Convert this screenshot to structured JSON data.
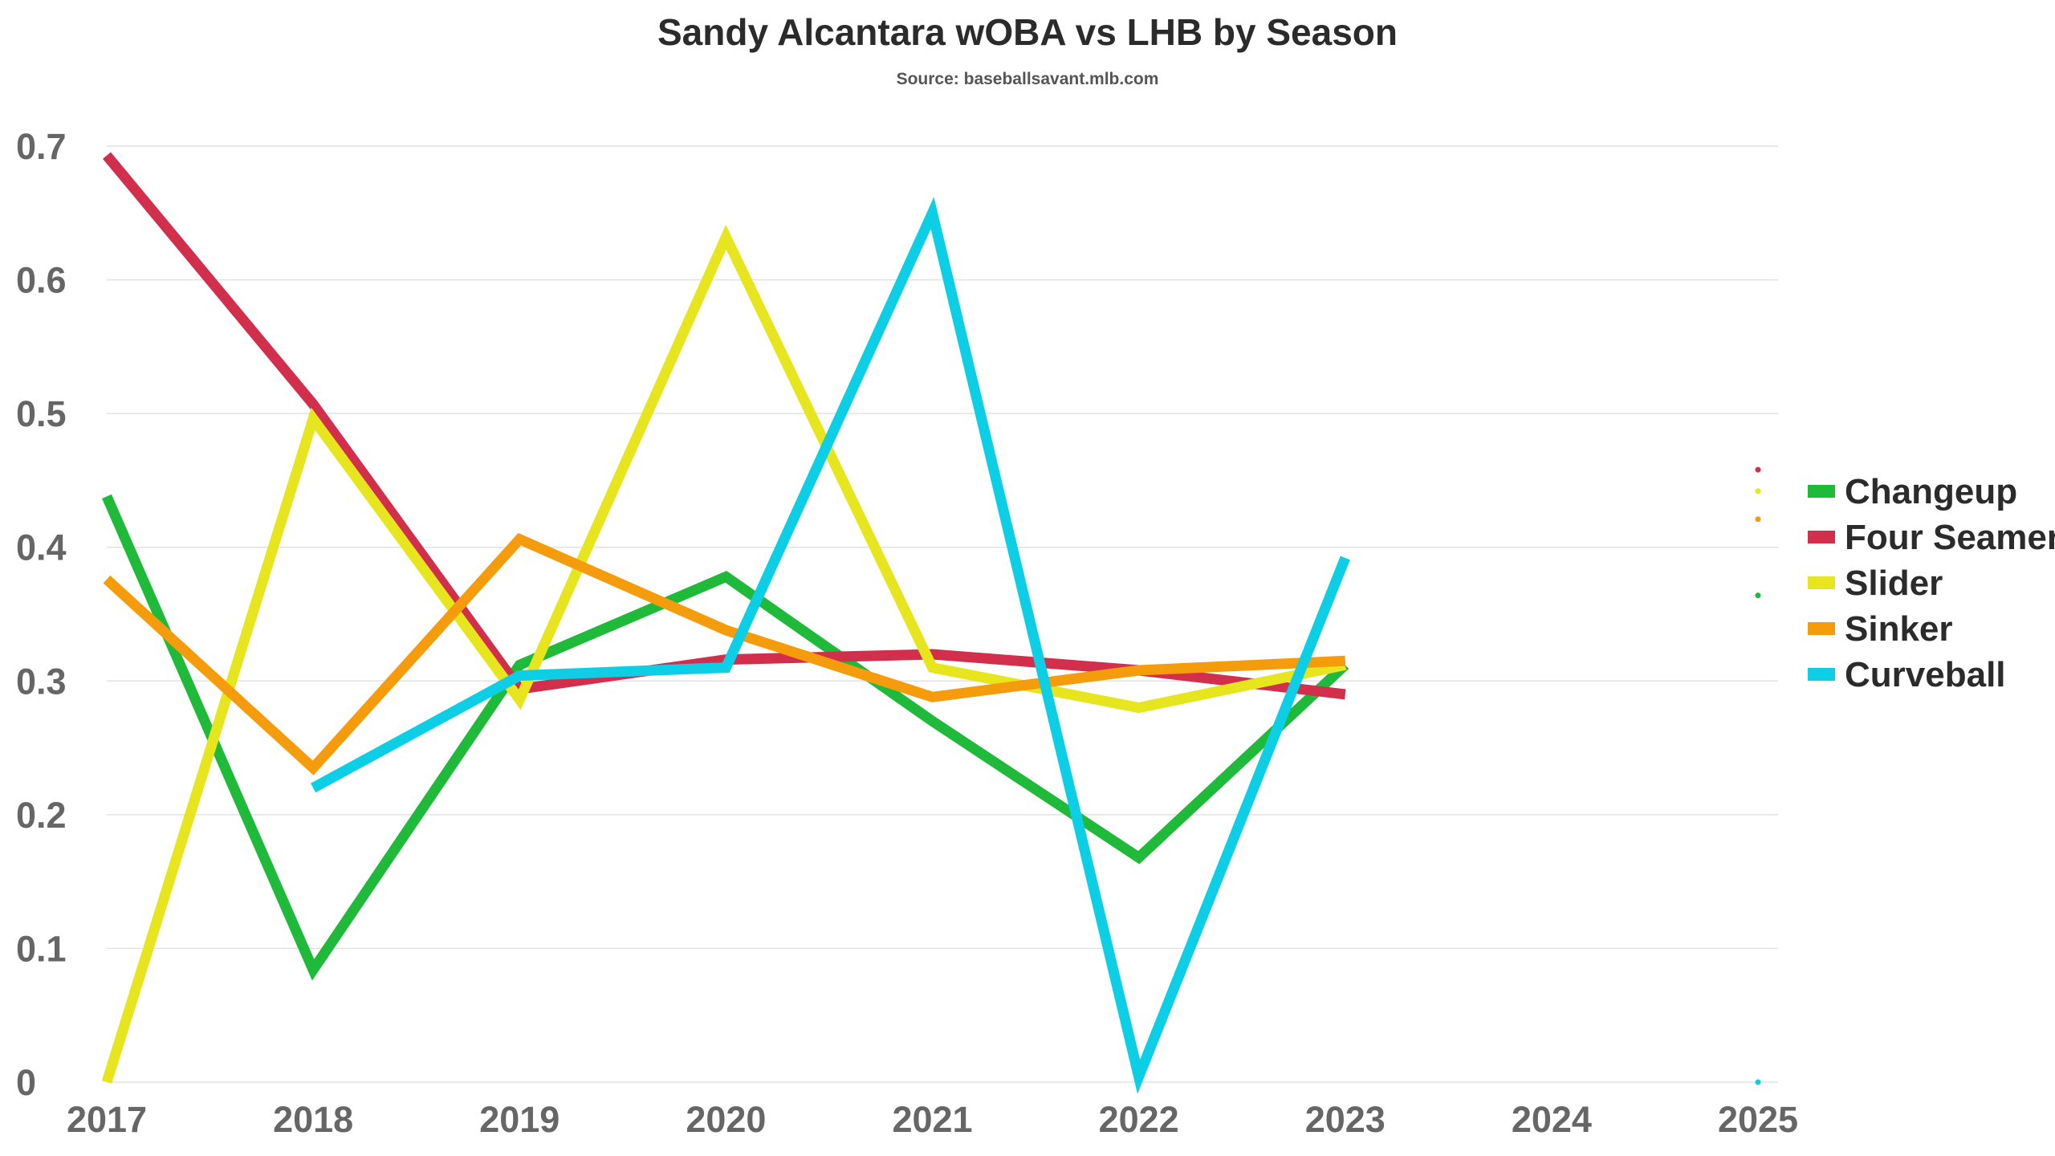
{
  "chart_data": {
    "type": "line",
    "title": "Sandy Alcantara wOBA vs LHB by Season",
    "subtitle": "Source: baseballsavant.mlb.com",
    "xlabel": "",
    "ylabel": "",
    "x": [
      2017,
      2018,
      2019,
      2020,
      2021,
      2022,
      2023,
      2024,
      2025
    ],
    "xlim": [
      2017,
      2025
    ],
    "ylim": [
      0,
      0.7
    ],
    "y_ticks": [
      0,
      0.1,
      0.2,
      0.3,
      0.4,
      0.5,
      0.6,
      0.7
    ],
    "x_ticks": [
      "2017",
      "2018",
      "2019",
      "2020",
      "2021",
      "2022",
      "2023",
      "2024",
      "2025"
    ],
    "grid": true,
    "legend_position": "right",
    "series": [
      {
        "name": "Changeup",
        "color": "#1fba3a",
        "x": [
          2017,
          2018,
          2019,
          2020,
          2021,
          2022,
          2023
        ],
        "values": [
          0.438,
          0.084,
          0.312,
          0.378,
          0.27,
          0.168,
          0.312
        ],
        "dots": [
          {
            "x": 2025,
            "y": 0.364
          }
        ]
      },
      {
        "name": "Four Seamer",
        "color": "#d12f4b",
        "x": [
          2017,
          2018,
          2019,
          2020,
          2021,
          2022,
          2023
        ],
        "values": [
          0.693,
          0.507,
          0.294,
          0.316,
          0.32,
          0.308,
          0.29
        ],
        "dots": [
          {
            "x": 2025,
            "y": 0.458
          }
        ]
      },
      {
        "name": "Slider",
        "color": "#e6e51e",
        "x": [
          2017,
          2018,
          2019,
          2020,
          2021,
          2022,
          2023
        ],
        "values": [
          0.0,
          0.496,
          0.286,
          0.632,
          0.31,
          0.28,
          0.312
        ],
        "dots": [
          {
            "x": 2025,
            "y": 0.442
          }
        ]
      },
      {
        "name": "Sinker",
        "color": "#f59c0c",
        "x": [
          2017,
          2018,
          2019,
          2020,
          2021,
          2022,
          2023
        ],
        "values": [
          0.376,
          0.235,
          0.406,
          0.338,
          0.288,
          0.308,
          0.315
        ],
        "dots": [
          {
            "x": 2025,
            "y": 0.421
          }
        ]
      },
      {
        "name": "Curveball",
        "color": "#0ccfe6",
        "x": [
          2018,
          2019,
          2020,
          2021,
          2022,
          2023
        ],
        "values": [
          0.22,
          0.304,
          0.31,
          0.65,
          0.004,
          0.392
        ],
        "dots": [
          {
            "x": 2025,
            "y": 0.0
          }
        ]
      }
    ]
  }
}
